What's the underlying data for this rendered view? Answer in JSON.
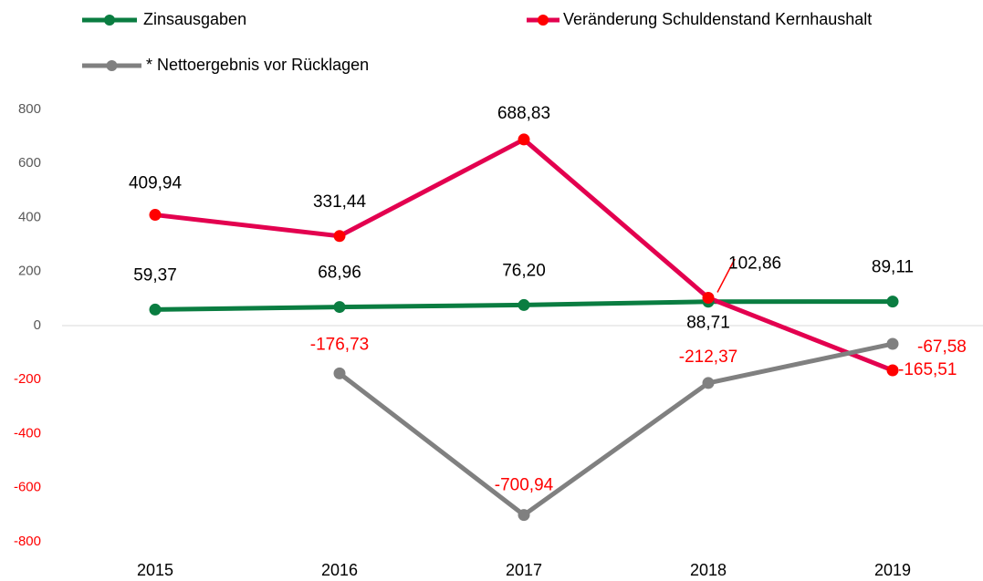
{
  "chart_data": {
    "type": "line",
    "categories": [
      "2015",
      "2016",
      "2017",
      "2018",
      "2019"
    ],
    "series": [
      {
        "name": "Zinsausgaben",
        "color": "#0a7d41",
        "values": [
          59.37,
          68.96,
          76.2,
          88.71,
          89.11
        ],
        "value_labels": [
          "59,37",
          "68,96",
          "76,20",
          "88,71",
          "89,11"
        ]
      },
      {
        "name": "Veränderung Schuldenstand Kernhaushalt",
        "color": "#e3004f",
        "values": [
          409.94,
          331.44,
          688.83,
          102.86,
          -165.51
        ],
        "value_labels": [
          "409,94",
          "331,44",
          "688,83",
          "102,86",
          "-165,51"
        ]
      },
      {
        "name": "* Nettoergebnis vor Rücklagen",
        "color": "#808080",
        "values": [
          null,
          -176.73,
          -700.94,
          -212.37,
          -67.58
        ],
        "value_labels": [
          null,
          "-176,73",
          "-700,94",
          "-212,37",
          "-67,58"
        ]
      }
    ],
    "ylim": [
      -800,
      800
    ],
    "yticks": [
      -800,
      -600,
      -400,
      -200,
      0,
      200,
      400,
      600,
      800
    ],
    "negative_label_color": "#ff0000",
    "label_color": "#000000",
    "marker_color": {
      "0": "#0a7d41",
      "1": "#ff0000",
      "2": "#808080"
    }
  }
}
